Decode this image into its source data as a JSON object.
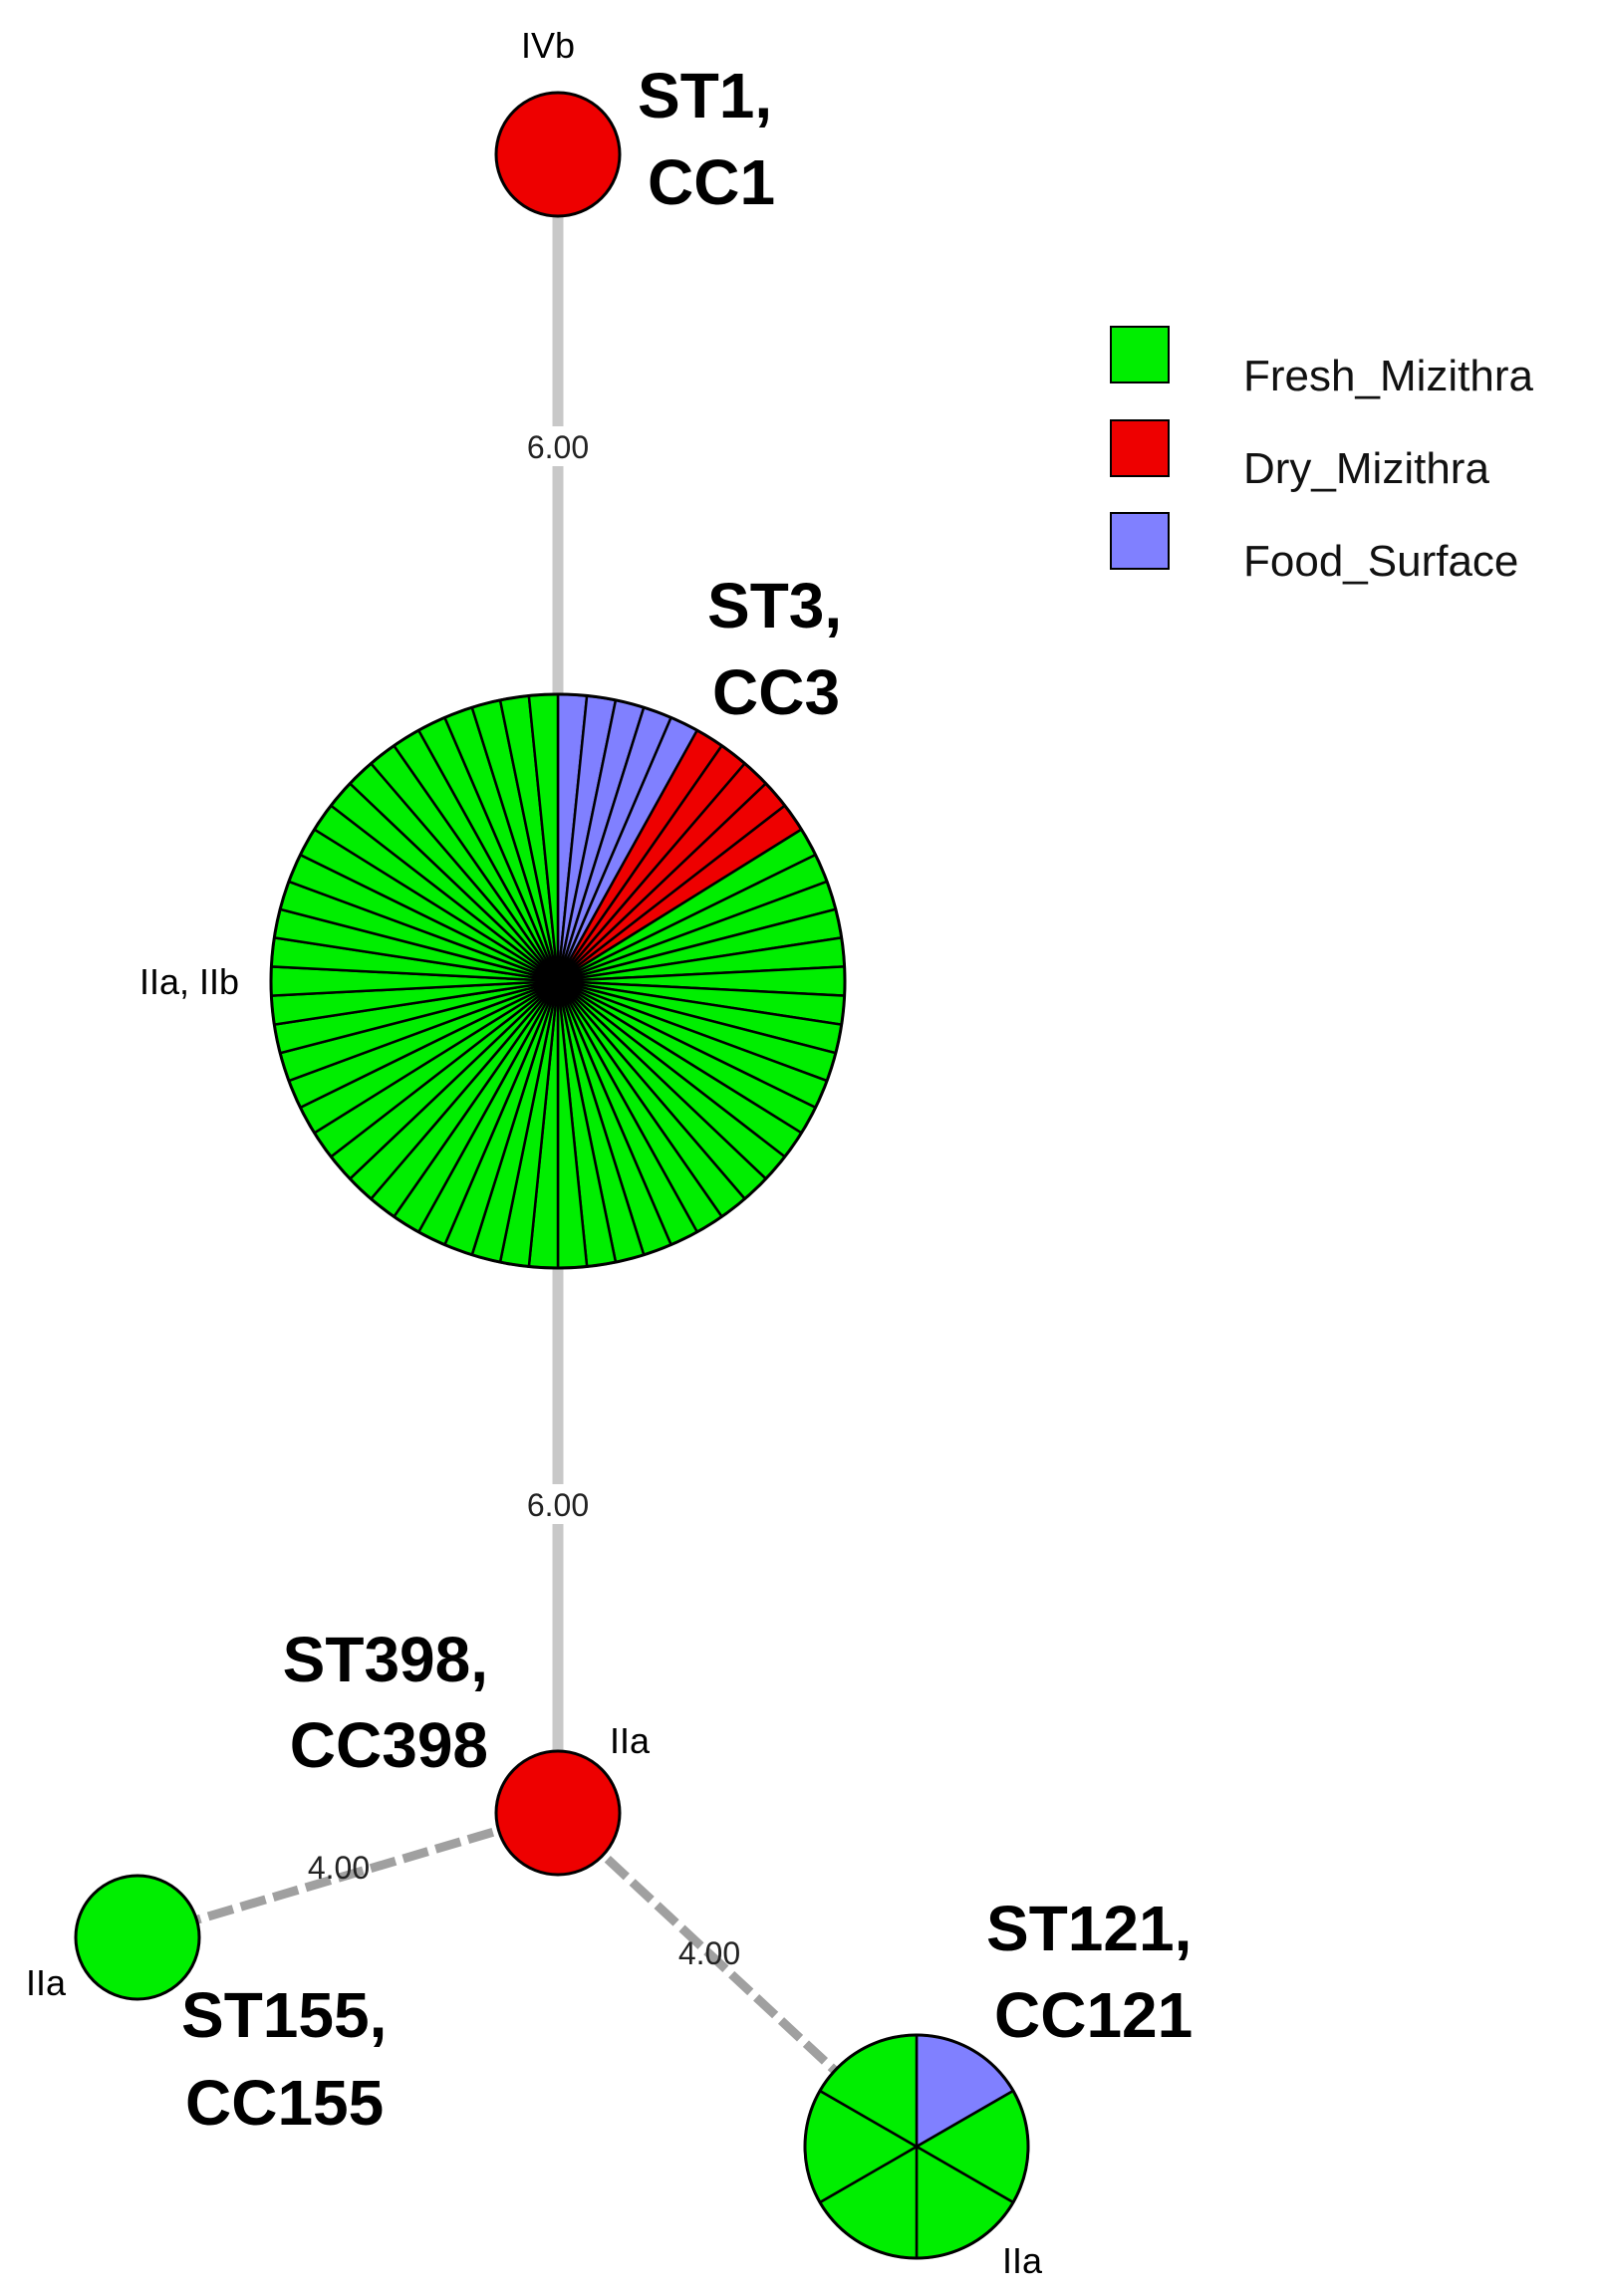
{
  "legend": [
    {
      "label": "Fresh_Mizithra",
      "color": "#00ee00"
    },
    {
      "label": "Dry_Mizithra",
      "color": "#ee0000"
    },
    {
      "label": "Food_Surface",
      "color": "#8080ff"
    }
  ],
  "nodes": [
    {
      "id": "st1",
      "st": "ST1,",
      "cc": "CC1",
      "serotype": "IVb",
      "segments": {
        "Fresh_Mizithra": 0,
        "Dry_Mizithra": 1,
        "Food_Surface": 0
      }
    },
    {
      "id": "st3",
      "st": "ST3,",
      "cc": "CC3",
      "serotype": "IIa, IIb",
      "segments": {
        "Fresh_Mizithra": 52,
        "Dry_Mizithra": 5,
        "Food_Surface": 5
      }
    },
    {
      "id": "st398",
      "st": "ST398,",
      "cc": "CC398",
      "serotype": "IIa",
      "segments": {
        "Fresh_Mizithra": 0,
        "Dry_Mizithra": 1,
        "Food_Surface": 0
      }
    },
    {
      "id": "st155",
      "st": "ST155,",
      "cc": "CC155",
      "serotype": "IIa",
      "segments": {
        "Fresh_Mizithra": 1,
        "Dry_Mizithra": 0,
        "Food_Surface": 0
      }
    },
    {
      "id": "st121",
      "st": "ST121,",
      "cc": "CC121",
      "serotype": "IIa",
      "segments": {
        "Fresh_Mizithra": 5,
        "Dry_Mizithra": 0,
        "Food_Surface": 1
      }
    }
  ],
  "edges": [
    {
      "from": "st1",
      "to": "st3",
      "label": "6.00",
      "style": "solid"
    },
    {
      "from": "st3",
      "to": "st398",
      "label": "6.00",
      "style": "solid"
    },
    {
      "from": "st398",
      "to": "st155",
      "label": "4.00",
      "style": "dashed"
    },
    {
      "from": "st398",
      "to": "st121",
      "label": "4.00",
      "style": "dashed"
    }
  ]
}
